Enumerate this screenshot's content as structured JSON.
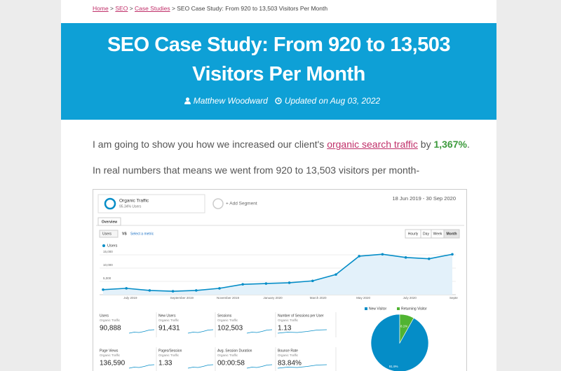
{
  "breadcrumb": {
    "items": [
      "Home",
      "SEO",
      "Case Studies",
      "SEO Case Study: From 920 to 13,503 Visitors Per Month"
    ],
    "separator": " > "
  },
  "header": {
    "title": "SEO Case Study: From 920 to 13,503 Visitors Per Month",
    "author": "Matthew Woodward",
    "updated": "Updated on Aug 03, 2022"
  },
  "paragraphs": [
    {
      "parts": [
        "I am going to show you how we increased our client's ",
        "organic search traffic",
        " by ",
        "1,367%",
        "."
      ]
    },
    "In real numbers that means we went from 920 to 13,503 visitors per month-"
  ],
  "analytics": {
    "segment": {
      "name": "Organic Traffic",
      "detail": "95.34% Users"
    },
    "add_segment": "+ Add Segment",
    "date_range": "18 Jun 2019 - 30 Sep 2020",
    "tab": "Overview",
    "metric_select": "Users",
    "vs": "VS",
    "select_metric": "Select a metric",
    "granularity": [
      "Hourly",
      "Day",
      "Week",
      "Month"
    ],
    "chart_data": [
      {
        "type": "line",
        "categories": [
          null,
          "July 2019",
          null,
          "September 2019",
          null,
          "November 2019",
          null,
          "January 2020",
          null,
          "March 2020",
          null,
          "May 2020",
          null,
          "July 2020",
          null,
          "Septe"
        ],
        "series": [
          {
            "name": "Users",
            "color": "#058dc7",
            "values": [
              1900,
              2400,
              1600,
              1300,
              1600,
              2400,
              3900,
              4200,
              4500,
              5200,
              7600,
              14500,
              15200,
              14000,
              13500,
              15200
            ]
          }
        ],
        "ylim": [
          0,
          17500
        ],
        "yticks": [
          {
            "value": 5000,
            "label": "5,000"
          },
          {
            "value": 10000,
            "label": "10,000"
          },
          {
            "value": 15000,
            "label": "15,000"
          }
        ]
      },
      {
        "type": "pie",
        "categories": [
          "New Visitor",
          "Returning Visitor"
        ],
        "values": [
          91.9,
          8.1
        ],
        "value_labels": [
          "91.9%",
          "8.1%"
        ],
        "colors": [
          "#058dc7",
          "#50b432"
        ]
      }
    ],
    "metrics": [
      {
        "name": "Users",
        "segment": "Organic Traffic",
        "value": "90,888"
      },
      {
        "name": "New Users",
        "segment": "Organic Traffic",
        "value": "91,431"
      },
      {
        "name": "Sessions",
        "segment": "Organic Traffic",
        "value": "102,503"
      },
      {
        "name": "Number of Sessions per User",
        "segment": "Organic Traffic",
        "value": "1.13"
      },
      {
        "name": "Page Views",
        "segment": "Organic Traffic",
        "value": "136,590"
      },
      {
        "name": "Pages/Session",
        "segment": "Organic Traffic",
        "value": "1.33"
      },
      {
        "name": "Avg. Session Duration",
        "segment": "Organic Traffic",
        "value": "00:00:58"
      },
      {
        "name": "Bounce Rate",
        "segment": "Organic Traffic",
        "value": "83.84%"
      }
    ]
  }
}
